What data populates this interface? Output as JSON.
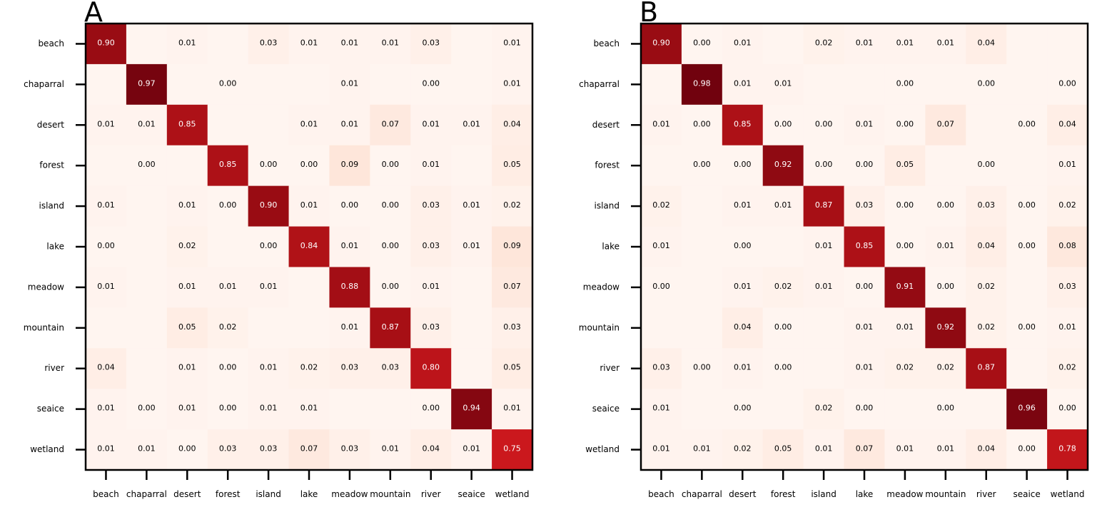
{
  "chart_data": [
    {
      "type": "heatmap",
      "panel_label": "A",
      "colormap": "Reds",
      "rows": [
        "beach",
        "chaparral",
        "desert",
        "forest",
        "island",
        "lake",
        "meadow",
        "mountain",
        "river",
        "seaice",
        "wetland"
      ],
      "cols": [
        "beach",
        "chaparral",
        "desert",
        "forest",
        "island",
        "lake",
        "meadow",
        "mountain",
        "river",
        "seaice",
        "wetland"
      ],
      "values": [
        [
          0.9,
          null,
          0.01,
          null,
          0.03,
          0.01,
          0.01,
          0.01,
          0.03,
          null,
          0.01
        ],
        [
          null,
          0.97,
          null,
          0.0,
          null,
          null,
          0.01,
          null,
          0.0,
          null,
          0.01
        ],
        [
          0.01,
          0.01,
          0.85,
          null,
          null,
          0.01,
          0.01,
          0.07,
          0.01,
          0.01,
          0.04
        ],
        [
          null,
          0.0,
          null,
          0.85,
          0.0,
          0.0,
          0.09,
          0.0,
          0.01,
          null,
          0.05
        ],
        [
          0.01,
          null,
          0.01,
          0.0,
          0.9,
          0.01,
          0.0,
          0.0,
          0.03,
          0.01,
          0.02
        ],
        [
          0.0,
          null,
          0.02,
          null,
          0.0,
          0.84,
          0.01,
          0.0,
          0.03,
          0.01,
          0.09
        ],
        [
          0.01,
          null,
          0.01,
          0.01,
          0.01,
          null,
          0.88,
          0.0,
          0.01,
          null,
          0.07
        ],
        [
          null,
          null,
          0.05,
          0.02,
          null,
          null,
          0.01,
          0.87,
          0.03,
          null,
          0.03
        ],
        [
          0.04,
          null,
          0.01,
          0.0,
          0.01,
          0.02,
          0.03,
          0.03,
          0.8,
          null,
          0.05
        ],
        [
          0.01,
          0.0,
          0.01,
          0.0,
          0.01,
          0.01,
          null,
          null,
          0.0,
          0.94,
          0.01
        ],
        [
          0.01,
          0.01,
          0.0,
          0.03,
          0.03,
          0.07,
          0.03,
          0.01,
          0.04,
          0.01,
          0.75
        ]
      ]
    },
    {
      "type": "heatmap",
      "panel_label": "B",
      "colormap": "Reds",
      "rows": [
        "beach",
        "chaparral",
        "desert",
        "forest",
        "island",
        "lake",
        "meadow",
        "mountain",
        "river",
        "seaice",
        "wetland"
      ],
      "cols": [
        "beach",
        "chaparral",
        "desert",
        "forest",
        "island",
        "lake",
        "meadow",
        "mountain",
        "river",
        "seaice",
        "wetland"
      ],
      "values": [
        [
          0.9,
          0.0,
          0.01,
          null,
          0.02,
          0.01,
          0.01,
          0.01,
          0.04,
          null,
          null
        ],
        [
          null,
          0.98,
          0.01,
          0.01,
          null,
          null,
          0.0,
          null,
          0.0,
          null,
          0.0
        ],
        [
          0.01,
          0.0,
          0.85,
          0.0,
          0.0,
          0.01,
          0.0,
          0.07,
          null,
          0.0,
          0.04
        ],
        [
          null,
          0.0,
          0.0,
          0.92,
          0.0,
          0.0,
          0.05,
          null,
          0.0,
          null,
          0.01
        ],
        [
          0.02,
          null,
          0.01,
          0.01,
          0.87,
          0.03,
          0.0,
          0.0,
          0.03,
          0.0,
          0.02
        ],
        [
          0.01,
          null,
          0.0,
          null,
          0.01,
          0.85,
          0.0,
          0.01,
          0.04,
          0.0,
          0.08
        ],
        [
          0.0,
          null,
          0.01,
          0.02,
          0.01,
          0.0,
          0.91,
          0.0,
          0.02,
          null,
          0.03
        ],
        [
          null,
          null,
          0.04,
          0.0,
          null,
          0.01,
          0.01,
          0.92,
          0.02,
          0.0,
          0.01
        ],
        [
          0.03,
          0.0,
          0.01,
          0.0,
          null,
          0.01,
          0.02,
          0.02,
          0.87,
          null,
          0.02
        ],
        [
          0.01,
          null,
          0.0,
          null,
          0.02,
          0.0,
          null,
          0.0,
          null,
          0.96,
          0.0
        ],
        [
          0.01,
          0.01,
          0.02,
          0.05,
          0.01,
          0.07,
          0.01,
          0.01,
          0.04,
          0.0,
          0.78
        ]
      ]
    }
  ]
}
